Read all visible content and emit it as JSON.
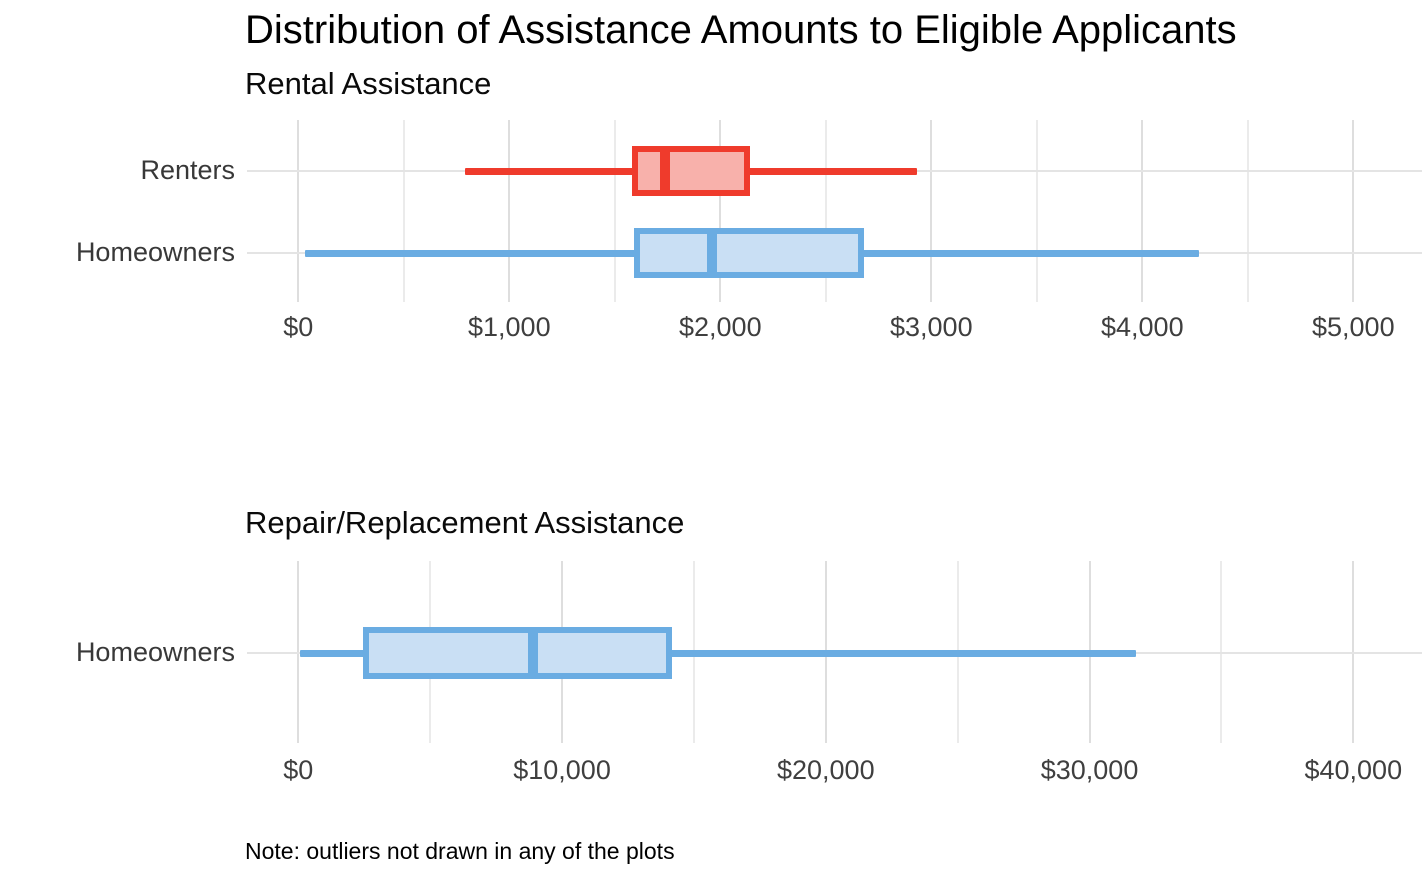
{
  "title": "Distribution of Assistance Amounts to Eligible Applicants",
  "note": "Note: outliers not drawn in any of the plots",
  "colors": {
    "red": {
      "stroke": "#ef3b2c",
      "fill": "#f8b1ab"
    },
    "blue": {
      "stroke": "#6aace2",
      "fill": "#c9dff4"
    }
  },
  "chart_data": [
    {
      "type": "boxplot",
      "title": "Rental Assistance",
      "orientation": "horizontal",
      "xlim": [
        0,
        5000
      ],
      "grid": true,
      "x_ticks": [
        {
          "value": 0,
          "label": "$0"
        },
        {
          "value": 1000,
          "label": "$1,000"
        },
        {
          "value": 2000,
          "label": "$2,000"
        },
        {
          "value": 3000,
          "label": "$3,000"
        },
        {
          "value": 4000,
          "label": "$4,000"
        },
        {
          "value": 5000,
          "label": "$5,000"
        }
      ],
      "x_minor_ticks": [
        500,
        1500,
        2500,
        3500,
        4500
      ],
      "series": [
        {
          "name": "Renters",
          "color": "red",
          "whisker_min": 790,
          "q1": 1580,
          "median": 1740,
          "q3": 2140,
          "whisker_max": 2930
        },
        {
          "name": "Homeowners",
          "color": "blue",
          "whisker_min": 30,
          "q1": 1590,
          "median": 1960,
          "q3": 2680,
          "whisker_max": 4270
        }
      ]
    },
    {
      "type": "boxplot",
      "title": "Repair/Replacement Assistance",
      "orientation": "horizontal",
      "xlim": [
        0,
        40000
      ],
      "grid": true,
      "x_ticks": [
        {
          "value": 0,
          "label": "$0"
        },
        {
          "value": 10000,
          "label": "$10,000"
        },
        {
          "value": 20000,
          "label": "$20,000"
        },
        {
          "value": 30000,
          "label": "$30,000"
        },
        {
          "value": 40000,
          "label": "$40,000"
        }
      ],
      "x_minor_ticks": [
        5000,
        15000,
        25000,
        35000
      ],
      "series": [
        {
          "name": "Homeowners",
          "color": "blue",
          "whisker_min": 50,
          "q1": 2460,
          "median": 8890,
          "q3": 14180,
          "whisker_max": 31770
        }
      ]
    }
  ]
}
